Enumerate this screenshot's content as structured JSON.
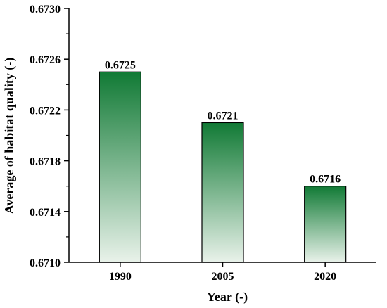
{
  "chart_data": {
    "type": "bar",
    "categories": [
      "1990",
      "2005",
      "2020"
    ],
    "values": [
      0.6725,
      0.6721,
      0.6716
    ],
    "data_labels": [
      "0.6725",
      "0.6721",
      "0.6716"
    ],
    "xlabel": "Year (-)",
    "ylabel": "Average of habitat quality (-)",
    "ylim": [
      0.671,
      0.673
    ],
    "yticks": [
      "0.6710",
      "0.6714",
      "0.6718",
      "0.6722",
      "0.6726",
      "0.6730"
    ],
    "grid": false,
    "bar_gradient": {
      "top": "#117a35",
      "bottom": "#e9f2ea"
    }
  }
}
